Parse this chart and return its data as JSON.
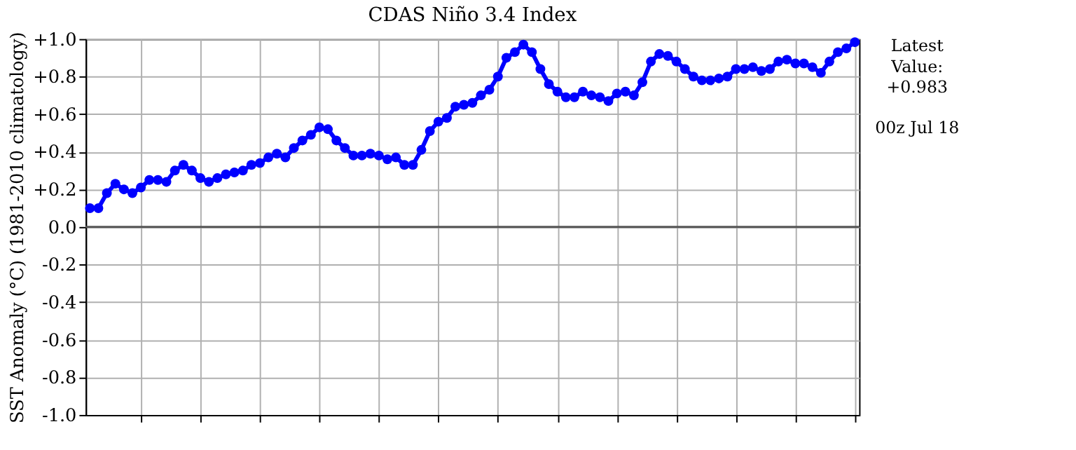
{
  "chart_data": {
    "type": "line",
    "title": "CDAS Niño 3.4 Index",
    "ylabel": "SST Anomaly (°C) (1981-2010 climatology)",
    "categories": [
      null,
      null,
      null,
      null,
      null,
      null,
      null,
      null,
      null,
      null,
      null,
      null,
      null,
      null,
      null,
      null,
      null,
      null,
      null,
      null,
      null,
      null,
      null,
      null,
      null,
      null,
      null,
      null,
      null,
      null,
      null,
      null,
      null,
      null,
      null,
      null,
      null,
      null,
      null,
      null,
      null,
      null,
      null,
      null,
      null,
      null,
      null,
      null,
      null,
      null,
      null,
      null,
      null,
      null,
      null,
      null,
      null,
      null,
      null,
      null,
      null,
      null,
      null,
      null,
      null,
      null,
      null,
      null,
      null,
      null,
      null,
      null,
      null,
      null,
      null,
      null,
      null,
      null,
      null,
      null,
      null,
      null,
      null,
      null,
      null,
      null,
      null,
      null,
      null,
      null,
      null
    ],
    "series": [
      {
        "color": "#0000ff",
        "values": [
          0.1,
          0.1,
          0.18,
          0.23,
          0.2,
          0.18,
          0.21,
          0.25,
          0.25,
          0.24,
          0.3,
          0.33,
          0.3,
          0.26,
          0.24,
          0.26,
          0.28,
          0.29,
          0.3,
          0.33,
          0.34,
          0.37,
          0.39,
          0.37,
          0.42,
          0.46,
          0.49,
          0.53,
          0.52,
          0.46,
          0.42,
          0.38,
          0.38,
          0.39,
          0.38,
          0.36,
          0.37,
          0.33,
          0.33,
          0.41,
          0.51,
          0.56,
          0.58,
          0.64,
          0.65,
          0.66,
          0.7,
          0.73,
          0.8,
          0.9,
          0.93,
          0.97,
          0.93,
          0.84,
          0.76,
          0.72,
          0.69,
          0.69,
          0.72,
          0.7,
          0.69,
          0.67,
          0.71,
          0.72,
          0.7,
          0.77,
          0.88,
          0.92,
          0.91,
          0.88,
          0.84,
          0.8,
          0.78,
          0.78,
          0.79,
          0.8,
          0.84,
          0.84,
          0.85,
          0.83,
          0.84,
          0.88,
          0.89,
          0.87,
          0.87,
          0.85,
          0.82,
          0.88,
          0.93,
          0.95,
          0.983
        ]
      }
    ],
    "ylim": [
      -1.0,
      1.0
    ],
    "yticks": [
      {
        "value": -1.0,
        "label": "-1.0"
      },
      {
        "value": -0.8,
        "label": "-0.8"
      },
      {
        "value": -0.6,
        "label": "-0.6"
      },
      {
        "value": -0.4,
        "label": "-0.4"
      },
      {
        "value": -0.2,
        "label": "-0.2"
      },
      {
        "value": 0.0,
        "label": "0.0"
      },
      {
        "value": 0.2,
        "label": "+0.2"
      },
      {
        "value": 0.4,
        "label": "+0.4"
      },
      {
        "value": 0.6,
        "label": "+0.6"
      },
      {
        "value": 0.8,
        "label": "+0.8"
      },
      {
        "value": 1.0,
        "label": "+1.0"
      }
    ],
    "ref_lines": [
      {
        "axis": "y",
        "value": 0.0,
        "color": "#555555"
      }
    ],
    "annotations": [
      "Latest Value: +0.983",
      "00z Jul 18"
    ],
    "grid": true,
    "marker": "circle",
    "line_style": "solid",
    "tick_labels": "y"
  }
}
